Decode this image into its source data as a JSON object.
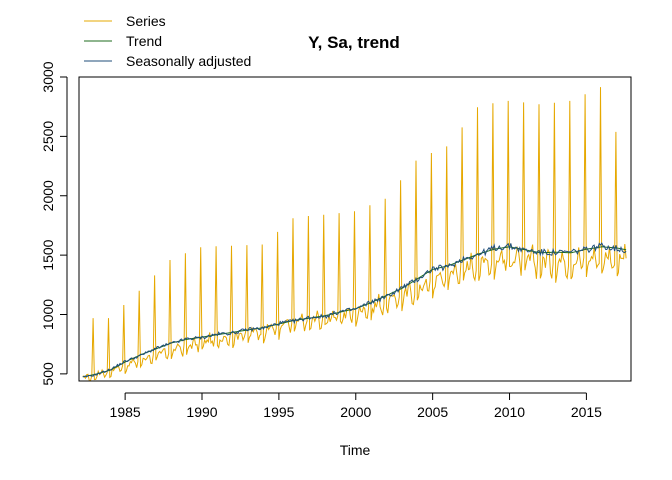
{
  "chart_data": {
    "type": "line",
    "title": "Y, Sa, trend",
    "xlabel": "Time",
    "ylabel": "",
    "xlim": [
      1982.0,
      2017.9
    ],
    "ylim": [
      440,
      3000
    ],
    "x_ticks": [
      1985,
      1990,
      1995,
      2000,
      2005,
      2010,
      2015
    ],
    "x_tick_labels": [
      "1985",
      "1990",
      "1995",
      "2000",
      "2005",
      "2010",
      "2015"
    ],
    "y_ticks": [
      500,
      1000,
      1500,
      2000,
      2500,
      3000
    ],
    "y_tick_labels": [
      "500",
      "1000",
      "1500",
      "2000",
      "2500",
      "3000"
    ],
    "grid": false,
    "legend": {
      "placement": "top-left",
      "entries": [
        {
          "label": "Series",
          "color": "#E6A800"
        },
        {
          "label": "Trend",
          "color": "#1E6B1E"
        },
        {
          "label": "Seasonally adjusted",
          "color": "#1F4E79"
        }
      ]
    },
    "frequency": "monthly",
    "start": 1982.25,
    "end": 2017.583,
    "series": [
      {
        "name": "Series",
        "color": "#E6A800",
        "description_points": {
          "x": [
            1982.25,
            1984.0,
            1986.0,
            1988.0,
            1990.0,
            1992.0,
            1994.0,
            1996.0,
            1998.0,
            2000.0,
            2002.0,
            2004.0,
            2006.0,
            2008.0,
            2010.0,
            2012.0,
            2014.0,
            2016.0,
            2017.583
          ],
          "y_level": [
            460,
            520,
            610,
            690,
            760,
            810,
            860,
            920,
            960,
            1010,
            1100,
            1200,
            1330,
            1420,
            1470,
            1440,
            1440,
            1470,
            1450
          ],
          "annual_peak": [
            null,
            970,
            1210,
            1470,
            1570,
            1580,
            1590,
            1820,
            1840,
            1870,
            1980,
            2310,
            2420,
            2760,
            2800,
            2770,
            2800,
            2920,
            2260
          ]
        }
      },
      {
        "name": "Trend",
        "color": "#1E6B1E",
        "x": [
          1982.25,
          1983.0,
          1984.0,
          1985.0,
          1986.0,
          1987.0,
          1988.0,
          1989.0,
          1990.0,
          1991.0,
          1992.0,
          1993.0,
          1994.0,
          1995.0,
          1996.0,
          1997.0,
          1998.0,
          1999.0,
          2000.0,
          2001.0,
          2002.0,
          2003.0,
          2004.0,
          2005.0,
          2006.0,
          2007.0,
          2008.0,
          2009.0,
          2010.0,
          2011.0,
          2012.0,
          2013.0,
          2014.0,
          2015.0,
          2016.0,
          2017.0,
          2017.583
        ],
        "y": [
          475,
          495,
          530,
          600,
          660,
          710,
          760,
          790,
          810,
          830,
          850,
          870,
          890,
          920,
          950,
          970,
          990,
          1020,
          1050,
          1100,
          1160,
          1220,
          1300,
          1380,
          1410,
          1460,
          1510,
          1550,
          1570,
          1545,
          1520,
          1525,
          1520,
          1550,
          1570,
          1560,
          1545
        ]
      },
      {
        "name": "Seasonally adjusted",
        "color": "#1F4E79",
        "x": [
          1982.25,
          1983.0,
          1984.0,
          1985.0,
          1986.0,
          1987.0,
          1988.0,
          1989.0,
          1990.0,
          1991.0,
          1992.0,
          1993.0,
          1994.0,
          1995.0,
          1996.0,
          1997.0,
          1998.0,
          1999.0,
          2000.0,
          2001.0,
          2002.0,
          2003.0,
          2004.0,
          2005.0,
          2006.0,
          2007.0,
          2008.0,
          2009.0,
          2010.0,
          2011.0,
          2012.0,
          2013.0,
          2014.0,
          2015.0,
          2016.0,
          2017.0,
          2017.583
        ],
        "y": [
          470,
          490,
          535,
          605,
          655,
          715,
          755,
          795,
          805,
          835,
          845,
          875,
          885,
          925,
          945,
          975,
          985,
          1025,
          1045,
          1105,
          1150,
          1225,
          1295,
          1385,
          1400,
          1470,
          1505,
          1560,
          1575,
          1540,
          1525,
          1520,
          1525,
          1545,
          1580,
          1555,
          1540
        ]
      }
    ]
  }
}
